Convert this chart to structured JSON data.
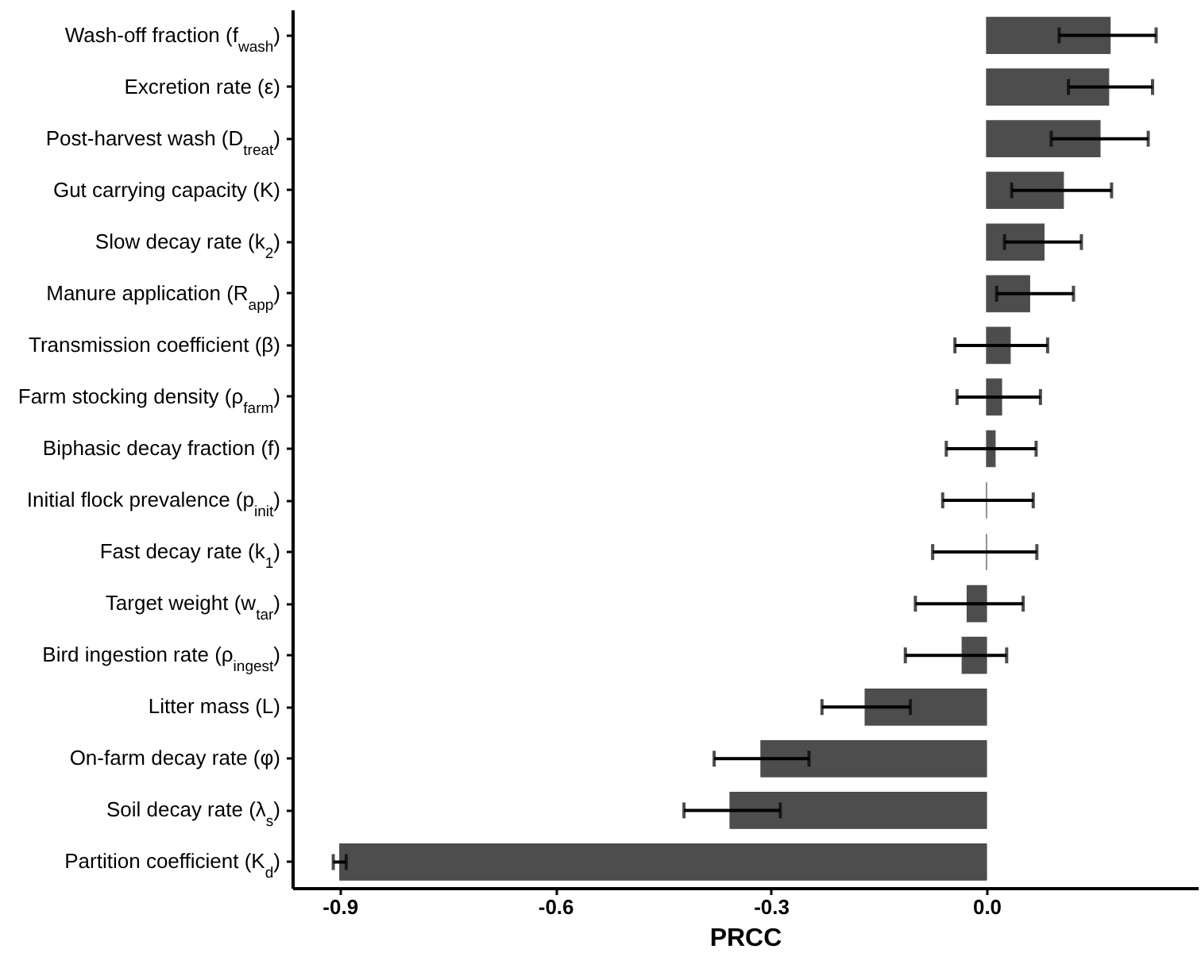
{
  "chart_data": {
    "type": "bar",
    "orientation": "horizontal",
    "xlabel": "PRCC",
    "categories": [
      "Wash-off fraction (f$_{wash}$)",
      "Excretion rate (ε)",
      "Post-harvest wash (D$_{treat}$)",
      "Gut carrying capacity (K)",
      "Slow decay rate (k$_{2}$)",
      "Manure application (R$_{app}$)",
      "Transmission coefficient (β)",
      "Farm stocking density (ρ$_{farm}$)",
      "Biphasic decay fraction (f)",
      "Initial flock prevalence (p$_{init}$)",
      "Fast decay rate (k$_{1}$)",
      "Target weight (w$_{tar}$)",
      "Bird ingestion rate (ρ$_{ingest}$)",
      "Litter mass (L)",
      "On-farm decay rate (φ)",
      "Soil decay rate (λ$_{s}$)",
      "Partition coefficient (K$_{d}$)"
    ],
    "values": [
      0.172,
      0.17,
      0.158,
      0.107,
      0.08,
      0.06,
      0.033,
      0.021,
      0.012,
      0.0,
      0.0,
      -0.027,
      -0.034,
      -0.169,
      -0.314,
      -0.357,
      -0.9
    ],
    "errors": [
      [
        0.101,
        0.236
      ],
      [
        0.114,
        0.231
      ],
      [
        0.09,
        0.225
      ],
      [
        0.035,
        0.174
      ],
      [
        0.025,
        0.132
      ],
      [
        0.014,
        0.121
      ],
      [
        -0.044,
        0.085
      ],
      [
        -0.041,
        0.075
      ],
      [
        -0.056,
        0.069
      ],
      [
        -0.061,
        0.065
      ],
      [
        -0.075,
        0.07
      ],
      [
        -0.099,
        0.051
      ],
      [
        -0.113,
        0.028
      ],
      [
        -0.229,
        -0.106
      ],
      [
        -0.379,
        -0.247
      ],
      [
        -0.421,
        -0.287
      ],
      [
        -0.909,
        -0.891
      ]
    ],
    "color": "#4d4d4d",
    "xlim": [
      -0.966,
      0.294
    ],
    "xticks": [
      -0.9,
      -0.6,
      -0.3,
      {
        "value": 0,
        "label": "0.0"
      }
    ],
    "grid": false
  }
}
